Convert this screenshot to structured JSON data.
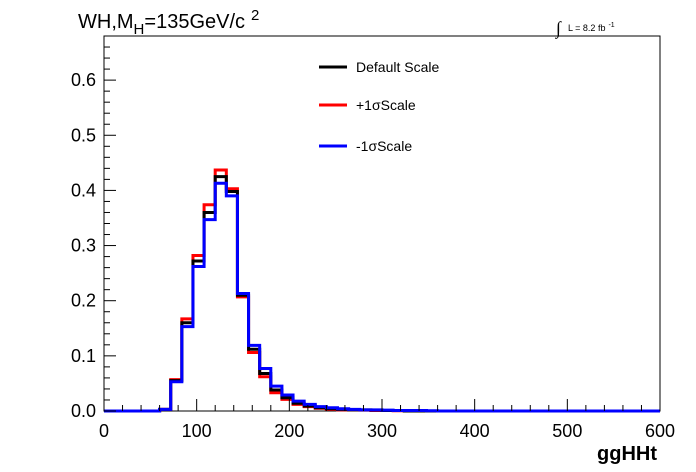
{
  "chart_data": {
    "type": "line",
    "title": {
      "main": "WH,M",
      "sub": "H",
      "rest": "=135GeV/c",
      "sup": "2"
    },
    "lumi": {
      "integral": "∫",
      "text": "L = 8.2 fb",
      "sup": "-1"
    },
    "xlabel": "ggHHt",
    "ylabel": "",
    "xlim": [
      0,
      600
    ],
    "ylim": [
      0,
      0.68
    ],
    "xticks": [
      0,
      100,
      200,
      300,
      400,
      500,
      600
    ],
    "xtick_labels": [
      "0",
      "100",
      "200",
      "300",
      "400",
      "500",
      "600"
    ],
    "yticks": [
      0,
      0.1,
      0.2,
      0.3,
      0.4,
      0.5,
      0.6
    ],
    "ytick_labels": [
      "0.0",
      "0.1",
      "0.2",
      "0.3",
      "0.4",
      "0.5",
      "0.6"
    ],
    "legend_position": "top-center",
    "bin_width": 12,
    "series": [
      {
        "name": "Default Scale",
        "color": "#000000",
        "values": [
          0,
          0,
          0,
          0,
          0,
          0.003,
          0.055,
          0.16,
          0.272,
          0.36,
          0.425,
          0.398,
          0.21,
          0.112,
          0.068,
          0.038,
          0.024,
          0.014,
          0.009,
          0.006,
          0.004,
          0.003,
          0.002,
          0.002,
          0.0015,
          0.001,
          0.001,
          0,
          0,
          0,
          0,
          0,
          0,
          0,
          0,
          0,
          0,
          0,
          0,
          0,
          0,
          0,
          0,
          0,
          0,
          0,
          0,
          0,
          0,
          0
        ]
      },
      {
        "name": "+1σScale",
        "color": "#ff0000",
        "values": [
          0,
          0,
          0,
          0,
          0,
          0.003,
          0.057,
          0.167,
          0.282,
          0.374,
          0.437,
          0.403,
          0.207,
          0.106,
          0.062,
          0.033,
          0.021,
          0.012,
          0.008,
          0.005,
          0.003,
          0.002,
          0.002,
          0.0015,
          0.001,
          0.001,
          0.0005,
          0,
          0,
          0,
          0,
          0,
          0,
          0,
          0,
          0,
          0,
          0,
          0,
          0,
          0,
          0,
          0,
          0,
          0,
          0,
          0,
          0,
          0,
          0
        ]
      },
      {
        "name": "-1σScale",
        "color": "#0000ff",
        "values": [
          0,
          0,
          0,
          0,
          0,
          0.003,
          0.053,
          0.153,
          0.262,
          0.347,
          0.413,
          0.39,
          0.213,
          0.119,
          0.077,
          0.045,
          0.029,
          0.018,
          0.012,
          0.008,
          0.006,
          0.004,
          0.003,
          0.002,
          0.002,
          0.0015,
          0.001,
          0.001,
          0.001,
          0.0005,
          0,
          0,
          0,
          0,
          0,
          0,
          0,
          0,
          0,
          0,
          0,
          0,
          0,
          0,
          0,
          0,
          0,
          0,
          0,
          0
        ]
      }
    ]
  }
}
